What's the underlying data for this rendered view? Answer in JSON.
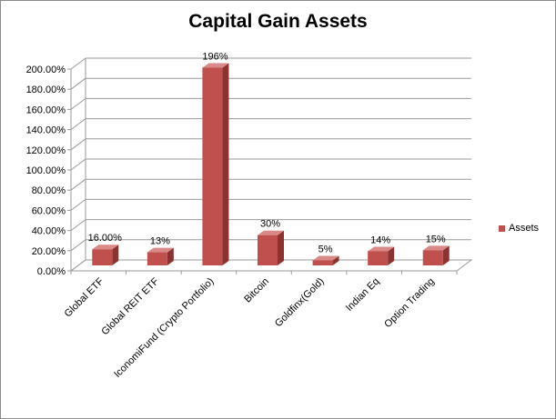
{
  "colors": {
    "bar_front": "#c0504d",
    "bar_top": "#d98987",
    "bar_side": "#8c3331",
    "grid": "#9a9a9a",
    "wall": "#ffffff"
  },
  "chart_data": {
    "type": "bar",
    "title": "Capital Gain Assets",
    "categories": [
      "Global ETF",
      "Global REIT ETF",
      "IconomiFund (Crypto Portfolio)",
      "Bitcoin",
      "Goldfinx(Gold)",
      "Indian Eq",
      "Option Trading"
    ],
    "series": [
      {
        "name": "Assets",
        "values": [
          16,
          13,
          196,
          30,
          5,
          14,
          15
        ],
        "data_labels": [
          "16.00%",
          "13%",
          "196%",
          "30%",
          "5%",
          "14%",
          "15%"
        ]
      }
    ],
    "ylim": [
      0,
      200
    ],
    "yticks": [
      0,
      20,
      40,
      60,
      80,
      100,
      120,
      140,
      160,
      180,
      200
    ],
    "ytick_labels": [
      "0.00%",
      "20.00%",
      "40.00%",
      "60.00%",
      "80.00%",
      "100.00%",
      "120.00%",
      "140.00%",
      "160.00%",
      "180.00%",
      "200.00%"
    ],
    "grid": true,
    "legend_position": "right",
    "style": "3d"
  }
}
